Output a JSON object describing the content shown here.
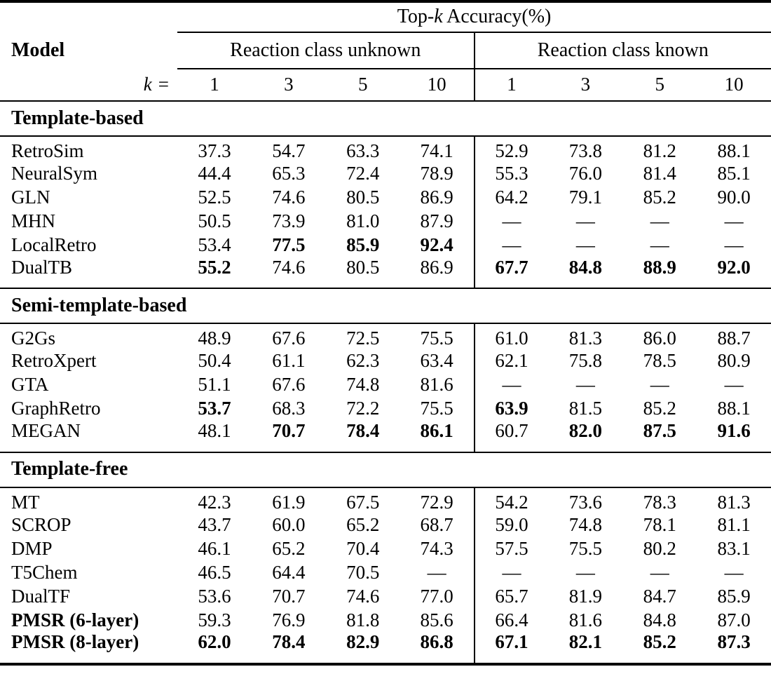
{
  "title": {
    "prefix": "Top-",
    "k": "k",
    "suffix": " Accuracy(%)"
  },
  "header": {
    "model_label": "Model",
    "group_unknown": "Reaction class unknown",
    "group_known": "Reaction class known",
    "k_italic": "k",
    "k_eq": "=",
    "k_columns": [
      "1",
      "3",
      "5",
      "10",
      "1",
      "3",
      "5",
      "10"
    ]
  },
  "missing_marker": "—",
  "sections": [
    {
      "title": "Template-based",
      "rows": [
        {
          "model": "RetroSim",
          "model_bold": false,
          "values": [
            "37.3",
            "54.7",
            "63.3",
            "74.1",
            "52.9",
            "73.8",
            "81.2",
            "88.1"
          ],
          "bold": [
            0,
            0,
            0,
            0,
            0,
            0,
            0,
            0
          ]
        },
        {
          "model": "NeuralSym",
          "model_bold": false,
          "values": [
            "44.4",
            "65.3",
            "72.4",
            "78.9",
            "55.3",
            "76.0",
            "81.4",
            "85.1"
          ],
          "bold": [
            0,
            0,
            0,
            0,
            0,
            0,
            0,
            0
          ]
        },
        {
          "model": "GLN",
          "model_bold": false,
          "values": [
            "52.5",
            "74.6",
            "80.5",
            "86.9",
            "64.2",
            "79.1",
            "85.2",
            "90.0"
          ],
          "bold": [
            0,
            0,
            0,
            0,
            0,
            0,
            0,
            0
          ]
        },
        {
          "model": "MHN",
          "model_bold": false,
          "values": [
            "50.5",
            "73.9",
            "81.0",
            "87.9",
            "—",
            "—",
            "—",
            "—"
          ],
          "bold": [
            0,
            0,
            0,
            0,
            0,
            0,
            0,
            0
          ]
        },
        {
          "model": "LocalRetro",
          "model_bold": false,
          "values": [
            "53.4",
            "77.5",
            "85.9",
            "92.4",
            "—",
            "—",
            "—",
            "—"
          ],
          "bold": [
            0,
            1,
            1,
            1,
            0,
            0,
            0,
            0
          ]
        },
        {
          "model": "DualTB",
          "model_bold": false,
          "values": [
            "55.2",
            "74.6",
            "80.5",
            "86.9",
            "67.7",
            "84.8",
            "88.9",
            "92.0"
          ],
          "bold": [
            1,
            0,
            0,
            0,
            1,
            1,
            1,
            1
          ]
        }
      ]
    },
    {
      "title": "Semi-template-based",
      "rows": [
        {
          "model": "G2Gs",
          "model_bold": false,
          "values": [
            "48.9",
            "67.6",
            "72.5",
            "75.5",
            "61.0",
            "81.3",
            "86.0",
            "88.7"
          ],
          "bold": [
            0,
            0,
            0,
            0,
            0,
            0,
            0,
            0
          ]
        },
        {
          "model": "RetroXpert",
          "model_bold": false,
          "values": [
            "50.4",
            "61.1",
            "62.3",
            "63.4",
            "62.1",
            "75.8",
            "78.5",
            "80.9"
          ],
          "bold": [
            0,
            0,
            0,
            0,
            0,
            0,
            0,
            0
          ]
        },
        {
          "model": "GTA",
          "model_bold": false,
          "values": [
            "51.1",
            "67.6",
            "74.8",
            "81.6",
            "—",
            "—",
            "—",
            "—"
          ],
          "bold": [
            0,
            0,
            0,
            0,
            0,
            0,
            0,
            0
          ]
        },
        {
          "model": "GraphRetro",
          "model_bold": false,
          "values": [
            "53.7",
            "68.3",
            "72.2",
            "75.5",
            "63.9",
            "81.5",
            "85.2",
            "88.1"
          ],
          "bold": [
            1,
            0,
            0,
            0,
            1,
            0,
            0,
            0
          ]
        },
        {
          "model": "MEGAN",
          "model_bold": false,
          "values": [
            "48.1",
            "70.7",
            "78.4",
            "86.1",
            "60.7",
            "82.0",
            "87.5",
            "91.6"
          ],
          "bold": [
            0,
            1,
            1,
            1,
            0,
            1,
            1,
            1
          ]
        }
      ]
    },
    {
      "title": "Template-free",
      "rows": [
        {
          "model": "MT",
          "model_bold": false,
          "values": [
            "42.3",
            "61.9",
            "67.5",
            "72.9",
            "54.2",
            "73.6",
            "78.3",
            "81.3"
          ],
          "bold": [
            0,
            0,
            0,
            0,
            0,
            0,
            0,
            0
          ]
        },
        {
          "model": "SCROP",
          "model_bold": false,
          "values": [
            "43.7",
            "60.0",
            "65.2",
            "68.7",
            "59.0",
            "74.8",
            "78.1",
            "81.1"
          ],
          "bold": [
            0,
            0,
            0,
            0,
            0,
            0,
            0,
            0
          ]
        },
        {
          "model": "DMP",
          "model_bold": false,
          "values": [
            "46.1",
            "65.2",
            "70.4",
            "74.3",
            "57.5",
            "75.5",
            "80.2",
            "83.1"
          ],
          "bold": [
            0,
            0,
            0,
            0,
            0,
            0,
            0,
            0
          ]
        },
        {
          "model": "T5Chem",
          "model_bold": false,
          "values": [
            "46.5",
            "64.4",
            "70.5",
            "—",
            "—",
            "—",
            "—",
            "—"
          ],
          "bold": [
            0,
            0,
            0,
            0,
            0,
            0,
            0,
            0
          ]
        },
        {
          "model": "DualTF",
          "model_bold": false,
          "values": [
            "53.6",
            "70.7",
            "74.6",
            "77.0",
            "65.7",
            "81.9",
            "84.7",
            "85.9"
          ],
          "bold": [
            0,
            0,
            0,
            0,
            0,
            0,
            0,
            0
          ]
        },
        {
          "model": "PMSR (6-layer)",
          "model_bold": true,
          "values": [
            "59.3",
            "76.9",
            "81.8",
            "85.6",
            "66.4",
            "81.6",
            "84.8",
            "87.0"
          ],
          "bold": [
            0,
            0,
            0,
            0,
            0,
            0,
            0,
            0
          ]
        },
        {
          "model": "PMSR (8-layer)",
          "model_bold": true,
          "values": [
            "62.0",
            "78.4",
            "82.9",
            "86.8",
            "67.1",
            "82.1",
            "85.2",
            "87.3"
          ],
          "bold": [
            1,
            1,
            1,
            1,
            1,
            1,
            1,
            1
          ]
        }
      ]
    }
  ]
}
